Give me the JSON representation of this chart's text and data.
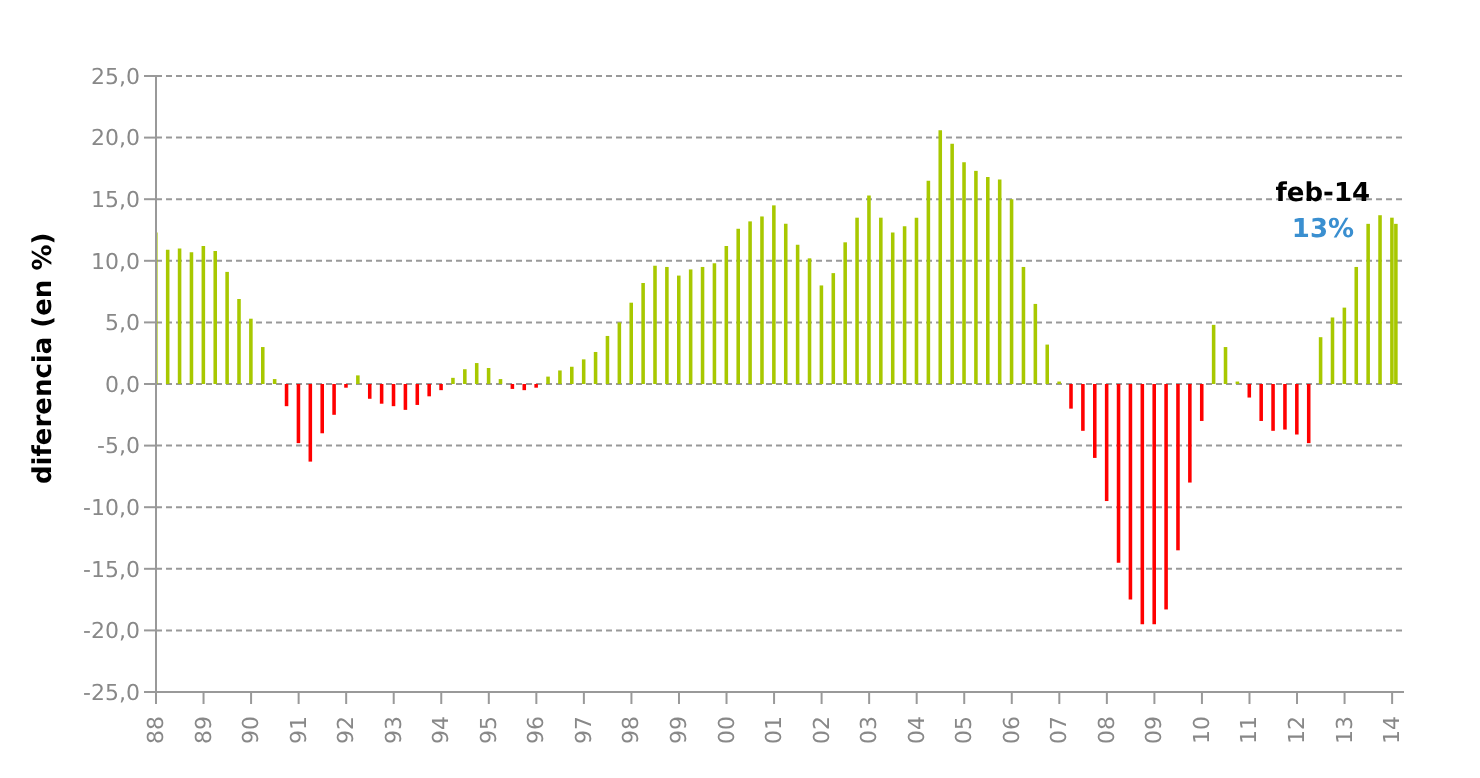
{
  "chart_data": {
    "type": "bar",
    "ylabel": "diferencia (en %)",
    "x": [
      "1988-01",
      "1988-04",
      "1988-07",
      "1988-10",
      "1989-01",
      "1989-04",
      "1989-07",
      "1989-10",
      "1990-01",
      "1990-04",
      "1990-07",
      "1990-10",
      "1991-01",
      "1991-04",
      "1991-07",
      "1991-10",
      "1992-01",
      "1992-04",
      "1992-07",
      "1992-10",
      "1993-01",
      "1993-04",
      "1993-07",
      "1993-10",
      "1994-01",
      "1994-04",
      "1994-07",
      "1994-10",
      "1995-01",
      "1995-04",
      "1995-07",
      "1995-10",
      "1996-01",
      "1996-04",
      "1996-07",
      "1996-10",
      "1997-01",
      "1997-04",
      "1997-07",
      "1997-10",
      "1998-01",
      "1998-04",
      "1998-07",
      "1998-10",
      "1999-01",
      "1999-04",
      "1999-07",
      "1999-10",
      "2000-01",
      "2000-04",
      "2000-07",
      "2000-10",
      "2001-01",
      "2001-04",
      "2001-07",
      "2001-10",
      "2002-01",
      "2002-04",
      "2002-07",
      "2002-10",
      "2003-01",
      "2003-04",
      "2003-07",
      "2003-10",
      "2004-01",
      "2004-04",
      "2004-07",
      "2004-10",
      "2005-01",
      "2005-04",
      "2005-07",
      "2005-10",
      "2006-01",
      "2006-04",
      "2006-07",
      "2006-10",
      "2007-01",
      "2007-04",
      "2007-07",
      "2007-10",
      "2008-01",
      "2008-04",
      "2008-07",
      "2008-10",
      "2009-01",
      "2009-04",
      "2009-07",
      "2009-10",
      "2010-01",
      "2010-04",
      "2010-07",
      "2010-10",
      "2011-01",
      "2011-04",
      "2011-07",
      "2011-10",
      "2012-01",
      "2012-04",
      "2012-07",
      "2012-10",
      "2013-01",
      "2013-04",
      "2013-07",
      "2013-10",
      "2014-01",
      "2014-02"
    ],
    "values": [
      12.3,
      10.9,
      11.0,
      10.7,
      11.2,
      10.8,
      9.1,
      6.9,
      5.3,
      3.0,
      0.4,
      -1.8,
      -4.8,
      -6.3,
      -4.0,
      -2.5,
      -0.3,
      0.7,
      -1.2,
      -1.6,
      -1.8,
      -2.1,
      -1.7,
      -1.0,
      -0.5,
      0.5,
      1.2,
      1.7,
      1.3,
      0.4,
      -0.4,
      -0.5,
      -0.3,
      0.6,
      1.1,
      1.4,
      2.0,
      2.6,
      3.9,
      5.0,
      6.6,
      8.2,
      9.6,
      9.5,
      8.8,
      9.3,
      9.5,
      9.8,
      11.2,
      12.6,
      13.2,
      13.6,
      14.5,
      13.0,
      11.3,
      10.2,
      8.0,
      9.0,
      11.5,
      13.5,
      15.3,
      13.5,
      12.3,
      12.8,
      13.5,
      16.5,
      20.6,
      19.5,
      18.0,
      17.3,
      16.8,
      16.6,
      15.0,
      9.5,
      6.5,
      3.2,
      0.2,
      -2.0,
      -3.8,
      -6.0,
      -9.5,
      -14.5,
      -17.5,
      -19.5,
      -19.5,
      -18.3,
      -13.5,
      -8.0,
      -3.0,
      4.8,
      3.0,
      0.2,
      -1.1,
      -3.0,
      -3.8,
      -3.7,
      -4.1,
      -4.8,
      3.8,
      5.4,
      6.2,
      9.5,
      13.0,
      13.7,
      13.5,
      13.0
    ],
    "colors": [
      "#a8c800",
      "#a8c800",
      "#a8c800",
      "#a8c800",
      "#a8c800",
      "#a8c800",
      "#a8c800",
      "#a8c800",
      "#a8c800",
      "#a8c800",
      "#a8c800",
      "#ff0000",
      "#ff0000",
      "#ff0000",
      "#ff0000",
      "#ff0000",
      "#ff0000",
      "#a8c800",
      "#ff0000",
      "#ff0000",
      "#ff0000",
      "#ff0000",
      "#ff0000",
      "#ff0000",
      "#ff0000",
      "#a8c800",
      "#a8c800",
      "#a8c800",
      "#a8c800",
      "#a8c800",
      "#ff0000",
      "#ff0000",
      "#ff0000",
      "#a8c800",
      "#a8c800",
      "#a8c800",
      "#a8c800",
      "#a8c800",
      "#a8c800",
      "#a8c800",
      "#a8c800",
      "#a8c800",
      "#a8c800",
      "#a8c800",
      "#a8c800",
      "#a8c800",
      "#a8c800",
      "#a8c800",
      "#a8c800",
      "#a8c800",
      "#a8c800",
      "#a8c800",
      "#a8c800",
      "#a8c800",
      "#a8c800",
      "#a8c800",
      "#a8c800",
      "#a8c800",
      "#a8c800",
      "#a8c800",
      "#a8c800",
      "#a8c800",
      "#a8c800",
      "#a8c800",
      "#a8c800",
      "#a8c800",
      "#a8c800",
      "#a8c800",
      "#a8c800",
      "#a8c800",
      "#a8c800",
      "#a8c800",
      "#a8c800",
      "#a8c800",
      "#a8c800",
      "#a8c800",
      "#a8c800",
      "#ff0000",
      "#ff0000",
      "#ff0000",
      "#ff0000",
      "#ff0000",
      "#ff0000",
      "#ff0000",
      "#ff0000",
      "#ff0000",
      "#ff0000",
      "#ff0000",
      "#ff0000",
      "#a8c800",
      "#a8c800",
      "#a8c800",
      "#ff0000",
      "#ff0000",
      "#ff0000",
      "#ff0000",
      "#ff0000",
      "#ff0000",
      "#a8c800",
      "#a8c800",
      "#a8c800",
      "#a8c800",
      "#a8c800",
      "#a8c800",
      "#a8c800",
      "#a8c800"
    ],
    "xlim": [
      "1988-01",
      "2014-04"
    ],
    "xticks": [
      {
        "value": "1988",
        "label": "88"
      },
      {
        "value": "1989",
        "label": "89"
      },
      {
        "value": "1990",
        "label": "90"
      },
      {
        "value": "1991",
        "label": "91"
      },
      {
        "value": "1992",
        "label": "92"
      },
      {
        "value": "1993",
        "label": "93"
      },
      {
        "value": "1994",
        "label": "94"
      },
      {
        "value": "1995",
        "label": "95"
      },
      {
        "value": "1996",
        "label": "96"
      },
      {
        "value": "1997",
        "label": "97"
      },
      {
        "value": "1998",
        "label": "98"
      },
      {
        "value": "1999",
        "label": "99"
      },
      {
        "value": "2000",
        "label": "00"
      },
      {
        "value": "2001",
        "label": "01"
      },
      {
        "value": "2002",
        "label": "02"
      },
      {
        "value": "2003",
        "label": "03"
      },
      {
        "value": "2004",
        "label": "04"
      },
      {
        "value": "2005",
        "label": "05"
      },
      {
        "value": "2006",
        "label": "06"
      },
      {
        "value": "2007",
        "label": "07"
      },
      {
        "value": "2008",
        "label": "08"
      },
      {
        "value": "2009",
        "label": "09"
      },
      {
        "value": "2010",
        "label": "10"
      },
      {
        "value": "2011",
        "label": "11"
      },
      {
        "value": "2012",
        "label": "12"
      },
      {
        "value": "2013",
        "label": "13"
      },
      {
        "value": "2014",
        "label": "14"
      }
    ],
    "ylim": [
      -25,
      25
    ],
    "yticks": [
      {
        "value": -25,
        "label": "-25,0"
      },
      {
        "value": -20,
        "label": "-20,0"
      },
      {
        "value": -15,
        "label": "-15,0"
      },
      {
        "value": -10,
        "label": "-10,0"
      },
      {
        "value": -5,
        "label": "-5,0"
      },
      {
        "value": 0,
        "label": "0,0"
      },
      {
        "value": 5,
        "label": "5,0"
      },
      {
        "value": 10,
        "label": "10,0"
      },
      {
        "value": 15,
        "label": "15,0"
      },
      {
        "value": 20,
        "label": "20,0"
      },
      {
        "value": 25,
        "label": "25,0"
      }
    ],
    "grid": "y",
    "annotations": [
      {
        "text": "feb-14",
        "x": "2014-02",
        "y": 13
      },
      {
        "text": "13%",
        "x": "2014-02",
        "y": 13
      }
    ]
  }
}
